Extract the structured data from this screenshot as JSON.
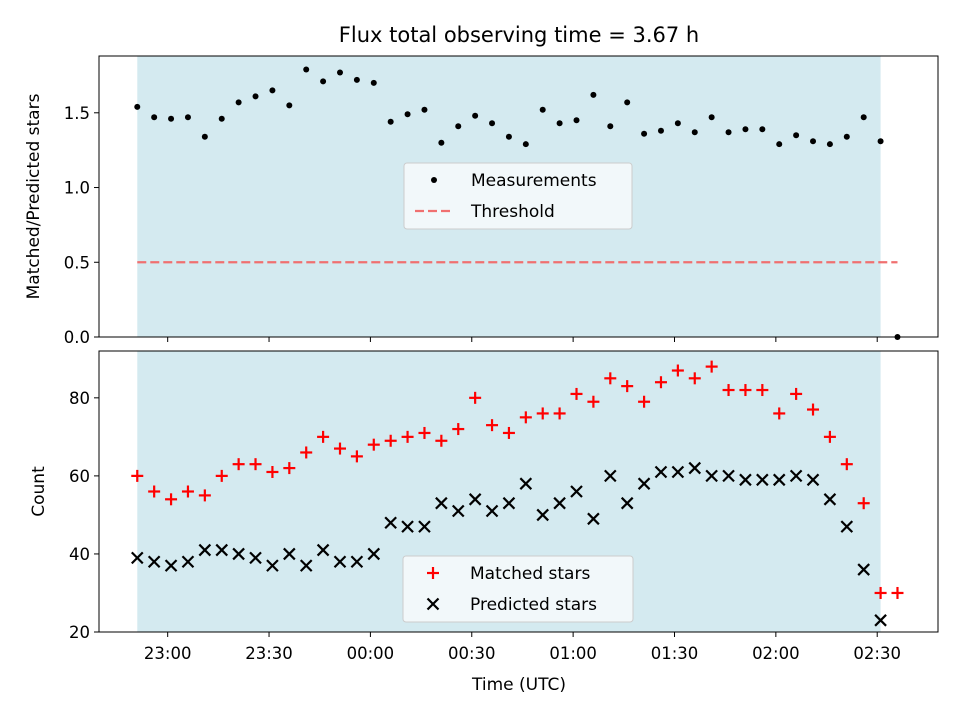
{
  "title": "Flux total observing time = 3.67 h",
  "xlabel": "Time (UTC)",
  "x_tick_labels": [
    "23:00",
    "23:30",
    "00:00",
    "00:30",
    "01:00",
    "01:30",
    "02:00",
    "02:30"
  ],
  "colors": {
    "shade": "#d4eaf0",
    "threshold": "#f07070",
    "measurements": "#000000",
    "matched": "#ff0000",
    "predicted": "#000000"
  },
  "chart_data": [
    {
      "type": "scatter",
      "ylabel": "Matched/Predicted stars",
      "ylim": [
        0,
        1.88
      ],
      "yticks": [
        0.0,
        0.5,
        1.0,
        1.5
      ],
      "ytick_labels": [
        "0.0",
        "0.5",
        "1.0",
        "1.5"
      ],
      "shaded_span": {
        "start": "22:51",
        "end": "02:31"
      },
      "threshold": {
        "value": 0.5,
        "from": "22:51",
        "to": "02:36",
        "style": "dashed"
      },
      "legend": {
        "position": "center",
        "entries": [
          "Measurements",
          "Threshold"
        ]
      },
      "series": [
        {
          "name": "Measurements",
          "marker": "dot",
          "x": [
            "22:51",
            "22:56",
            "23:01",
            "23:06",
            "23:11",
            "23:16",
            "23:21",
            "23:26",
            "23:31",
            "23:36",
            "23:41",
            "23:46",
            "23:51",
            "23:56",
            "00:01",
            "00:06",
            "00:11",
            "00:16",
            "00:21",
            "00:26",
            "00:31",
            "00:36",
            "00:41",
            "00:46",
            "00:51",
            "00:56",
            "01:01",
            "01:06",
            "01:11",
            "01:16",
            "01:21",
            "01:26",
            "01:31",
            "01:36",
            "01:41",
            "01:46",
            "01:51",
            "01:56",
            "02:01",
            "02:06",
            "02:11",
            "02:16",
            "02:21",
            "02:26",
            "02:31",
            "02:36"
          ],
          "y": [
            1.54,
            1.47,
            1.46,
            1.47,
            1.34,
            1.46,
            1.57,
            1.61,
            1.65,
            1.55,
            1.79,
            1.71,
            1.77,
            1.72,
            1.7,
            1.44,
            1.49,
            1.52,
            1.3,
            1.41,
            1.48,
            1.43,
            1.34,
            1.29,
            1.52,
            1.43,
            1.45,
            1.62,
            1.41,
            1.57,
            1.36,
            1.38,
            1.43,
            1.37,
            1.47,
            1.37,
            1.39,
            1.39,
            1.29,
            1.35,
            1.31,
            1.29,
            1.34,
            1.47,
            1.31,
            0.0
          ]
        }
      ]
    },
    {
      "type": "scatter",
      "ylabel": "Count",
      "ylim": [
        20,
        92
      ],
      "yticks": [
        20,
        40,
        60,
        80
      ],
      "ytick_labels": [
        "20",
        "40",
        "60",
        "80"
      ],
      "shaded_span": {
        "start": "22:51",
        "end": "02:31"
      },
      "legend": {
        "position": "bottom-center",
        "entries": [
          "Matched stars",
          "Predicted stars"
        ]
      },
      "series": [
        {
          "name": "Matched stars",
          "marker": "plus",
          "x": [
            "22:51",
            "22:56",
            "23:01",
            "23:06",
            "23:11",
            "23:16",
            "23:21",
            "23:26",
            "23:31",
            "23:36",
            "23:41",
            "23:46",
            "23:51",
            "23:56",
            "00:01",
            "00:06",
            "00:11",
            "00:16",
            "00:21",
            "00:26",
            "00:31",
            "00:36",
            "00:41",
            "00:46",
            "00:51",
            "00:56",
            "01:01",
            "01:06",
            "01:11",
            "01:16",
            "01:21",
            "01:26",
            "01:31",
            "01:36",
            "01:41",
            "01:46",
            "01:51",
            "01:56",
            "02:01",
            "02:06",
            "02:11",
            "02:16",
            "02:21",
            "02:26",
            "02:31",
            "02:36"
          ],
          "y": [
            60,
            56,
            54,
            56,
            55,
            60,
            63,
            63,
            61,
            62,
            66,
            70,
            67,
            65,
            68,
            69,
            70,
            71,
            69,
            72,
            80,
            73,
            71,
            75,
            76,
            76,
            81,
            79,
            85,
            83,
            79,
            84,
            87,
            85,
            88,
            82,
            82,
            82,
            76,
            81,
            77,
            70,
            63,
            53,
            30,
            30
          ]
        },
        {
          "name": "Predicted stars",
          "marker": "x",
          "x": [
            "22:51",
            "22:56",
            "23:01",
            "23:06",
            "23:11",
            "23:16",
            "23:21",
            "23:26",
            "23:31",
            "23:36",
            "23:41",
            "23:46",
            "23:51",
            "23:56",
            "00:01",
            "00:06",
            "00:11",
            "00:16",
            "00:21",
            "00:26",
            "00:31",
            "00:36",
            "00:41",
            "00:46",
            "00:51",
            "00:56",
            "01:01",
            "01:06",
            "01:11",
            "01:16",
            "01:21",
            "01:26",
            "01:31",
            "01:36",
            "01:41",
            "01:46",
            "01:51",
            "01:56",
            "02:01",
            "02:06",
            "02:11",
            "02:16",
            "02:21",
            "02:26",
            "02:31"
          ],
          "y": [
            39,
            38,
            37,
            38,
            41,
            41,
            40,
            39,
            37,
            40,
            37,
            41,
            38,
            38,
            40,
            48,
            47,
            47,
            53,
            51,
            54,
            51,
            53,
            58,
            50,
            53,
            56,
            49,
            60,
            53,
            58,
            61,
            61,
            62,
            60,
            60,
            59,
            59,
            59,
            60,
            59,
            54,
            47,
            36,
            23
          ]
        }
      ]
    }
  ]
}
